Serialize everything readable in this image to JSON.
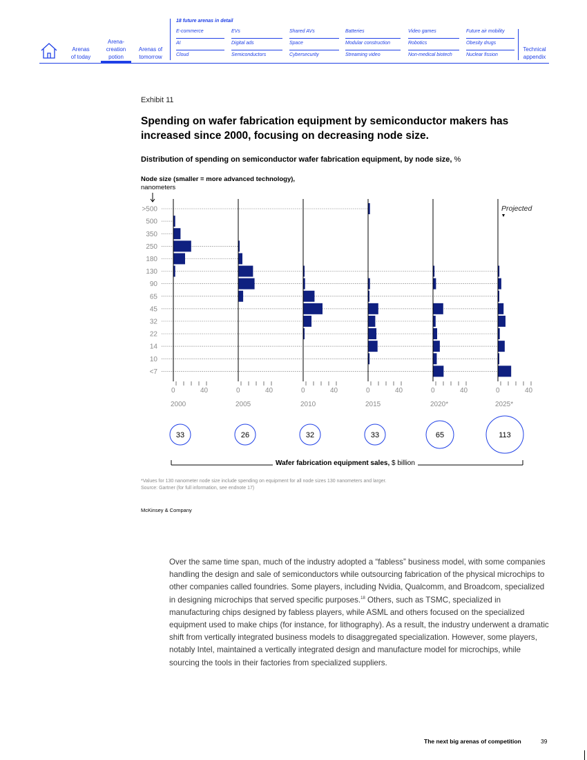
{
  "nav": {
    "home_icon": "house-icon",
    "main_items": [
      {
        "line1": "Arenas",
        "line2": "of today",
        "line3": ""
      },
      {
        "line1": "Arena-",
        "line2": "creation",
        "line3": "potion"
      },
      {
        "line1": "Arenas of",
        "line2": "tomorrow",
        "line3": ""
      }
    ],
    "detail_title": "18 future arenas in detail",
    "arena_columns": [
      [
        "E-commerce",
        "AI",
        "Cloud"
      ],
      [
        "EVs",
        "Digital ads",
        "Semiconductors"
      ],
      [
        "Shared AVs",
        "Space",
        "Cybersecurity"
      ],
      [
        "Batteries",
        "Modular construction",
        "Streaming video"
      ],
      [
        "Video games",
        "Robotics",
        "Non-medical biotech"
      ],
      [
        "Future air mobility",
        "Obesity drugs",
        "Nuclear fission"
      ]
    ],
    "appendix": {
      "line1": "Technical",
      "line2": "appendix"
    }
  },
  "exhibit": {
    "label": "Exhibit 11",
    "headline": "Spending on wafer fabrication equipment by semiconductor makers has increased since 2000, focusing on decreasing node size.",
    "subtitle_bold": "Distribution of spending on semiconductor wafer fabrication equipment, by node size,",
    "subtitle_unit": " %",
    "ylabel_bold": "Node size (smaller = more advanced technology),",
    "ylabel_unit": "nanometers",
    "sales_label_bold": "Wafer fabrication equipment sales,",
    "sales_label_unit": " $ billion",
    "footnote_1": "*Values for 130 nanometer node size include spending on equipment for all node sizes 130 nanometers and larger.",
    "footnote_2": "Source: Gartner (for full information, see endnote 17)",
    "brand": "McKinsey & Company"
  },
  "chart_data": {
    "type": "bar",
    "orientation": "horizontal",
    "layout": "small-multiples",
    "categories": [
      ">500",
      "500",
      "350",
      "250",
      "180",
      "130",
      "90",
      "65",
      "45",
      "32",
      "22",
      "14",
      "10",
      "<7"
    ],
    "xlim": [
      0,
      50
    ],
    "x_ticks": [
      0,
      40
    ],
    "annotation": "Projected",
    "series": [
      {
        "name": "2000",
        "total_sales": "33",
        "values": [
          0,
          2,
          9,
          23,
          15,
          2,
          0,
          0,
          0,
          0,
          0,
          0,
          0,
          0
        ]
      },
      {
        "name": "2005",
        "total_sales": "26",
        "values": [
          0,
          0,
          0,
          1,
          5,
          19,
          21,
          6,
          0,
          0,
          0,
          0,
          0,
          0
        ]
      },
      {
        "name": "2010",
        "total_sales": "32",
        "values": [
          0,
          0,
          0,
          0,
          0,
          0.5,
          2,
          14.5,
          25,
          10.5,
          0.5,
          0,
          0,
          0
        ]
      },
      {
        "name": "2015",
        "total_sales": "33",
        "values": [
          2,
          0,
          0,
          0,
          0,
          0,
          2,
          0.5,
          13,
          9,
          10.5,
          12,
          1.5,
          0
        ]
      },
      {
        "name": "2020*",
        "total_sales": "65",
        "values": [
          0,
          0,
          0,
          0,
          0,
          1.5,
          3.5,
          0,
          13,
          3,
          5,
          8.5,
          4.5,
          13.5
        ]
      },
      {
        "name": "2025*",
        "total_sales": "113",
        "values": [
          0,
          0,
          0,
          0,
          0,
          1.5,
          4,
          0.5,
          7,
          9.5,
          2,
          8.5,
          1,
          17
        ]
      }
    ],
    "colors": {
      "bar": "#0f2080",
      "accent": "#1f40e6",
      "grid": "#666666",
      "tick": "#8a8a8a"
    }
  },
  "body": {
    "p1": "Over the same time span, much of the industry adopted a “fabless” business model, with some companies handling the design and sale of semiconductors while outsourcing fabrication of the physical microchips to other companies called foundries. Some players, including Nvidia, Qualcomm, and Broadcom, specialized in designing microchips that served specific purposes.",
    "p1_sup": "18",
    "p2": " Others, such as TSMC, specialized in manufacturing chips designed by fabless players, while ASML and others focused on the specialized equipment used to make chips (for instance, for lithography). As a result, the industry underwent a dramatic shift from vertically integrated business models to disaggregated specialization. However, some players, notably Intel, maintained a vertically integrated design and manufacture model for microchips, while sourcing the tools in their factories from specialized suppliers."
  },
  "footer": {
    "title": "The next big arenas of competition",
    "page": "39"
  }
}
